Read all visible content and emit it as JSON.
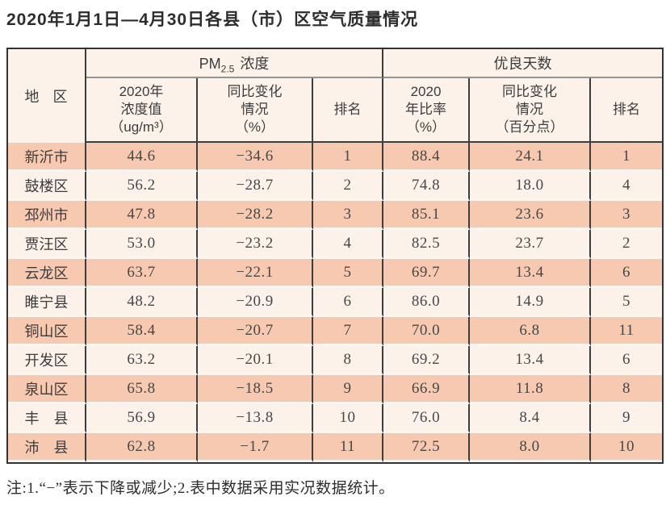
{
  "title": "2020年1月1日—4月30日各县（市）区空气质量情况",
  "note": "注:1.“−”表示下降或减少;2.表中数据采用实况数据统计。",
  "colors": {
    "stripe_row": "#f8c9b1",
    "light_row": "#fcf2ea",
    "border_dark": "#333333",
    "border_gray": "#929292",
    "text": "#3c3c3c"
  },
  "table": {
    "header": {
      "region": "地区",
      "pm_group": {
        "base": "PM",
        "sub": "2.5",
        "suffix": "浓度"
      },
      "good_group": "优良天数",
      "pm_value": "2020年\n浓度值\n（ug/m³）",
      "pm_change": "同比变化\n情况\n（%）",
      "pm_rank": "排名",
      "good_rate": "2020\n年比率\n（%）",
      "good_change": "同比变化\n情况\n（百分点）",
      "good_rank": "排名"
    },
    "rows": [
      {
        "region": "新沂市",
        "pm_value": "44.6",
        "pm_change": "−34.6",
        "pm_rank": "1",
        "good_rate": "88.4",
        "good_change": "24.1",
        "good_rank": "1"
      },
      {
        "region": "鼓楼区",
        "pm_value": "56.2",
        "pm_change": "−28.7",
        "pm_rank": "2",
        "good_rate": "74.8",
        "good_change": "18.0",
        "good_rank": "4"
      },
      {
        "region": "邳州市",
        "pm_value": "47.8",
        "pm_change": "−28.2",
        "pm_rank": "3",
        "good_rate": "85.1",
        "good_change": "23.6",
        "good_rank": "3"
      },
      {
        "region": "贾汪区",
        "pm_value": "53.0",
        "pm_change": "−23.2",
        "pm_rank": "4",
        "good_rate": "82.5",
        "good_change": "23.7",
        "good_rank": "2"
      },
      {
        "region": "云龙区",
        "pm_value": "63.7",
        "pm_change": "−22.1",
        "pm_rank": "5",
        "good_rate": "69.7",
        "good_change": "13.4",
        "good_rank": "6"
      },
      {
        "region": "睢宁县",
        "pm_value": "48.2",
        "pm_change": "−20.9",
        "pm_rank": "6",
        "good_rate": "86.0",
        "good_change": "14.9",
        "good_rank": "5"
      },
      {
        "region": "铜山区",
        "pm_value": "58.4",
        "pm_change": "−20.7",
        "pm_rank": "7",
        "good_rate": "70.0",
        "good_change": "6.8",
        "good_rank": "11"
      },
      {
        "region": "开发区",
        "pm_value": "63.2",
        "pm_change": "−20.1",
        "pm_rank": "8",
        "good_rate": "69.2",
        "good_change": "13.4",
        "good_rank": "6"
      },
      {
        "region": "泉山区",
        "pm_value": "65.8",
        "pm_change": "−18.5",
        "pm_rank": "9",
        "good_rate": "66.9",
        "good_change": "11.8",
        "good_rank": "8"
      },
      {
        "region": "丰县",
        "pm_value": "56.9",
        "pm_change": "−13.8",
        "pm_rank": "10",
        "good_rate": "76.0",
        "good_change": "8.4",
        "good_rank": "9"
      },
      {
        "region": "沛县",
        "pm_value": "62.8",
        "pm_change": "−1.7",
        "pm_rank": "11",
        "good_rate": "72.5",
        "good_change": "8.0",
        "good_rank": "10"
      }
    ]
  }
}
